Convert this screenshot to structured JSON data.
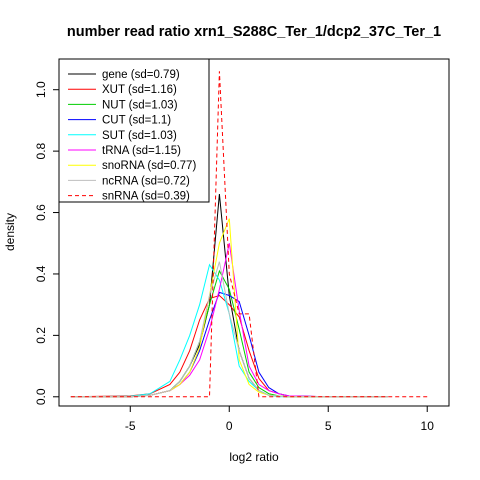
{
  "chart_data": {
    "type": "line",
    "title": "number read ratio xrn1_S288C_Ter_1/dcp2_37C_Ter_1",
    "xlabel": "log2 ratio",
    "ylabel": "density",
    "xlim": [
      -8.6,
      11.1
    ],
    "ylim": [
      -0.03,
      1.1
    ],
    "x_ticks": [
      -5,
      0,
      5,
      10
    ],
    "x_tick_labels": [
      "-5",
      "0",
      "5",
      "10"
    ],
    "y_ticks": [
      0.0,
      0.2,
      0.4,
      0.6,
      0.8,
      1.0
    ],
    "y_tick_labels": [
      "0.0",
      "0.2",
      "0.4",
      "0.6",
      "0.8",
      "1.0"
    ],
    "grid": false,
    "legend_position": "top-left",
    "series": [
      {
        "name": "gene (sd=0.79)",
        "color": "#000000",
        "dash": false,
        "x": [
          -8,
          -5,
          -4,
          -3,
          -2.5,
          -2,
          -1.5,
          -1,
          -0.5,
          0,
          0.5,
          1,
          1.5,
          2,
          3,
          5,
          8
        ],
        "y": [
          0,
          0,
          0.005,
          0.02,
          0.05,
          0.1,
          0.17,
          0.3,
          0.66,
          0.33,
          0.15,
          0.06,
          0.02,
          0.005,
          0,
          0,
          0
        ]
      },
      {
        "name": "XUT (sd=1.16)",
        "color": "#ff0000",
        "dash": false,
        "x": [
          -8,
          -5,
          -4,
          -3,
          -2.5,
          -2,
          -1.5,
          -1,
          -0.5,
          0,
          0.5,
          1,
          1.5,
          2,
          2.5,
          3,
          5,
          8
        ],
        "y": [
          0,
          0.003,
          0.01,
          0.04,
          0.08,
          0.15,
          0.25,
          0.32,
          0.33,
          0.3,
          0.26,
          0.15,
          0.06,
          0.02,
          0.01,
          0.003,
          0,
          0
        ]
      },
      {
        "name": "NUT (sd=1.03)",
        "color": "#00cd00",
        "dash": false,
        "x": [
          -8,
          -5,
          -4,
          -3,
          -2.5,
          -2,
          -1.5,
          -1,
          -0.5,
          0,
          0.5,
          1,
          1.5,
          2,
          2.5,
          3,
          5,
          8
        ],
        "y": [
          0,
          0,
          0.005,
          0.02,
          0.05,
          0.1,
          0.18,
          0.3,
          0.41,
          0.35,
          0.22,
          0.08,
          0.03,
          0.01,
          0.003,
          0,
          0,
          0
        ]
      },
      {
        "name": "CUT (sd=1.1)",
        "color": "#0000ff",
        "dash": false,
        "x": [
          -8,
          -5,
          -4,
          -3,
          -2.5,
          -2,
          -1.5,
          -1,
          -0.5,
          0,
          0.5,
          1,
          1.5,
          2,
          2.5,
          3,
          5,
          8
        ],
        "y": [
          0,
          0,
          0.005,
          0.02,
          0.04,
          0.08,
          0.15,
          0.25,
          0.34,
          0.33,
          0.31,
          0.2,
          0.08,
          0.03,
          0.01,
          0.003,
          0,
          0
        ]
      },
      {
        "name": "SUT (sd=1.03)",
        "color": "#00ffff",
        "dash": false,
        "x": [
          -8,
          -5,
          -4,
          -3,
          -2.5,
          -2,
          -1.5,
          -1,
          -0.5,
          0,
          0.5,
          1,
          1.5,
          2,
          2.5,
          3,
          5,
          8
        ],
        "y": [
          0,
          0.002,
          0.01,
          0.05,
          0.12,
          0.2,
          0.3,
          0.43,
          0.38,
          0.27,
          0.1,
          0.05,
          0.02,
          0.005,
          0,
          0,
          0,
          0
        ]
      },
      {
        "name": "tRNA (sd=1.15)",
        "color": "#ff00ff",
        "dash": false,
        "x": [
          -8,
          -5,
          -4,
          -3,
          -2.5,
          -2,
          -1.5,
          -1,
          -0.5,
          0,
          0.5,
          1,
          1.5,
          2,
          2.5,
          3,
          5,
          8
        ],
        "y": [
          0,
          0,
          0.005,
          0.02,
          0.04,
          0.07,
          0.12,
          0.22,
          0.35,
          0.5,
          0.28,
          0.1,
          0.04,
          0.02,
          0.01,
          0.003,
          0,
          0
        ]
      },
      {
        "name": "snoRNA (sd=0.77)",
        "color": "#ffff00",
        "dash": false,
        "x": [
          -8,
          -5,
          -4,
          -3,
          -2.5,
          -2,
          -1.5,
          -1,
          -0.5,
          0,
          0.5,
          1,
          1.5,
          2,
          3,
          5,
          8
        ],
        "y": [
          0,
          0,
          0.005,
          0.02,
          0.04,
          0.08,
          0.16,
          0.33,
          0.5,
          0.58,
          0.12,
          0.04,
          0.015,
          0.005,
          0,
          0,
          0
        ]
      },
      {
        "name": "ncRNA (sd=0.72)",
        "color": "#bebebe",
        "dash": false,
        "x": [
          -8,
          -5,
          -4,
          -3,
          -2.5,
          -2,
          -1.5,
          -1,
          -0.5,
          0,
          0.5,
          1,
          1.5,
          2,
          3,
          5,
          8
        ],
        "y": [
          0,
          0,
          0.005,
          0.02,
          0.05,
          0.1,
          0.18,
          0.33,
          0.44,
          0.27,
          0.15,
          0.06,
          0.02,
          0.005,
          0,
          0,
          0
        ]
      },
      {
        "name": "snRNA (sd=0.39)",
        "color": "#ff0000",
        "dash": true,
        "x": [
          -8,
          -1,
          -0.5,
          0,
          0.5,
          1,
          1.5,
          10
        ],
        "y": [
          0,
          0,
          1.06,
          0.4,
          0.27,
          0.27,
          0,
          0
        ]
      }
    ]
  }
}
